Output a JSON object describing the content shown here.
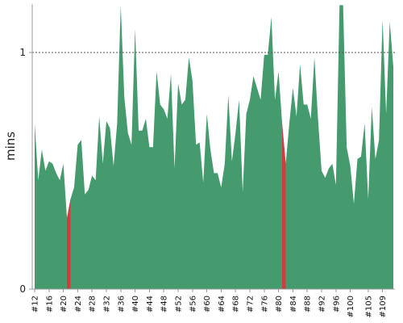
{
  "chart_data": {
    "type": "area",
    "ylabel": "mins",
    "yticks": [
      {
        "value": 0,
        "label": "0"
      },
      {
        "value": 1,
        "label": "1"
      }
    ],
    "ylim": [
      0,
      1.2
    ],
    "reference_line": {
      "value": 1,
      "style": "dashed"
    },
    "colors": {
      "pass": "#469b6e",
      "fail": "#d23c3c"
    },
    "x": [
      12,
      13,
      14,
      15,
      16,
      17,
      18,
      19,
      20,
      21,
      22,
      23,
      24,
      25,
      26,
      27,
      28,
      29,
      30,
      31,
      32,
      33,
      34,
      35,
      36,
      37,
      38,
      39,
      40,
      41,
      42,
      43,
      44,
      45,
      46,
      47,
      48,
      49,
      50,
      51,
      52,
      53,
      54,
      55,
      56,
      57,
      58,
      59,
      60,
      61,
      62,
      63,
      64,
      65,
      66,
      67,
      68,
      69,
      70,
      71,
      72,
      73,
      74,
      75,
      76,
      77,
      78,
      79,
      80,
      81,
      82,
      83,
      84,
      85,
      86,
      87,
      88,
      89,
      90,
      91,
      92,
      93,
      94,
      95,
      96,
      97,
      98,
      99,
      100,
      101,
      102,
      103,
      104,
      105,
      106,
      107,
      108,
      109,
      110,
      111,
      112
    ],
    "xtick_labels": [
      "#12",
      "#16",
      "#20",
      "#24",
      "#28",
      "#32",
      "#36",
      "#40",
      "#44",
      "#48",
      "#52",
      "#56",
      "#60",
      "#64",
      "#68",
      "#72",
      "#76",
      "#80",
      "#84",
      "#88",
      "#92",
      "#96",
      "#100",
      "#105",
      "#109"
    ],
    "values": [
      0.7,
      0.46,
      0.59,
      0.5,
      0.54,
      0.53,
      0.49,
      0.46,
      0.53,
      0.3,
      0.38,
      0.43,
      0.61,
      0.63,
      0.4,
      0.42,
      0.48,
      0.46,
      0.73,
      0.53,
      0.71,
      0.68,
      0.52,
      0.7,
      1.2,
      0.81,
      0.66,
      0.61,
      1.1,
      0.67,
      0.67,
      0.72,
      0.6,
      0.6,
      0.92,
      0.78,
      0.76,
      0.72,
      0.91,
      0.51,
      0.87,
      0.78,
      0.8,
      0.98,
      0.88,
      0.61,
      0.62,
      0.45,
      0.74,
      0.59,
      0.49,
      0.49,
      0.43,
      0.53,
      0.82,
      0.54,
      0.66,
      0.8,
      0.41,
      0.74,
      0.8,
      0.9,
      0.85,
      0.8,
      0.99,
      0.99,
      1.15,
      0.8,
      0.92,
      0.7,
      0.53,
      0.7,
      0.85,
      0.73,
      0.95,
      0.78,
      0.78,
      0.72,
      0.98,
      0.72,
      0.5,
      0.47,
      0.51,
      0.53,
      0.44,
      1.2,
      1.2,
      0.6,
      0.52,
      0.36,
      0.55,
      0.56,
      0.7,
      0.38,
      0.77,
      0.55,
      0.63,
      1.14,
      0.74,
      1.13,
      0.94
    ],
    "failed_builds": [
      21,
      81
    ]
  }
}
